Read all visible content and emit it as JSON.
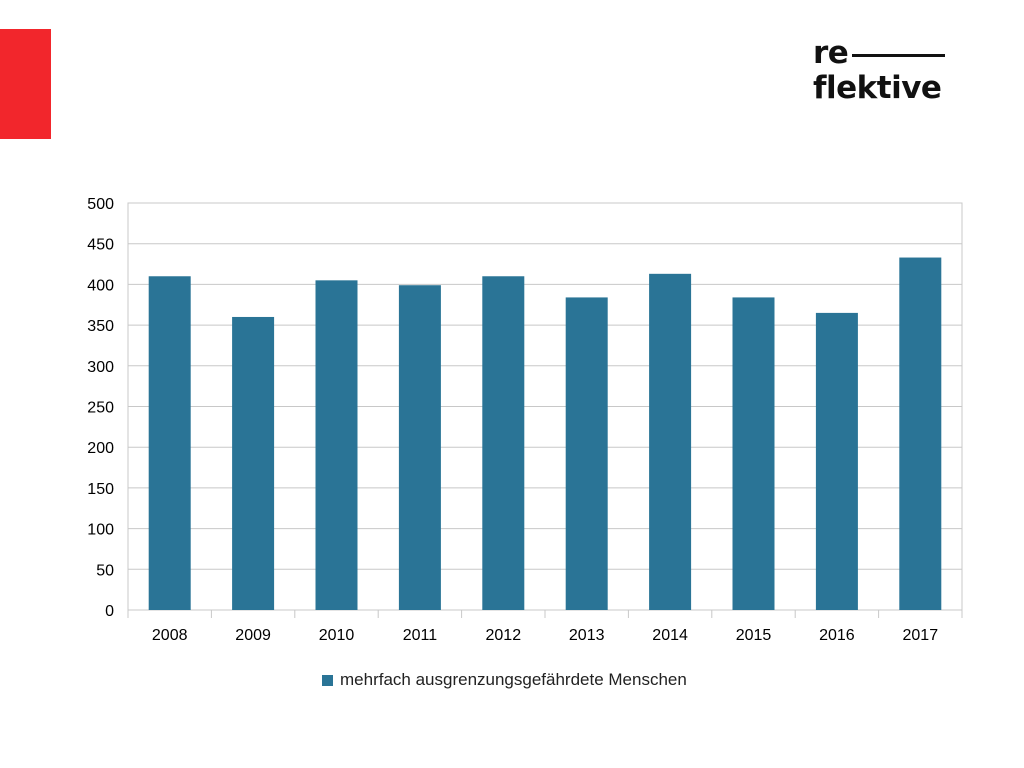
{
  "brand": {
    "logo_line1": "re",
    "logo_line2": "flektive",
    "accent_color": "#F2262C"
  },
  "chart_data": {
    "type": "bar",
    "categories": [
      "2008",
      "2009",
      "2010",
      "2011",
      "2012",
      "2013",
      "2014",
      "2015",
      "2016",
      "2017"
    ],
    "series": [
      {
        "name": "mehrfach ausgrenzungsgefährdete Menschen",
        "color": "#2A7496",
        "values": [
          410,
          360,
          405,
          399,
          410,
          384,
          413,
          384,
          365,
          433
        ]
      }
    ],
    "ylim": [
      0,
      500
    ],
    "yticks": [
      0,
      50,
      100,
      150,
      200,
      250,
      300,
      350,
      400,
      450,
      500
    ],
    "grid": true,
    "legend_position": "bottom",
    "title": "",
    "xlabel": "",
    "ylabel": ""
  }
}
